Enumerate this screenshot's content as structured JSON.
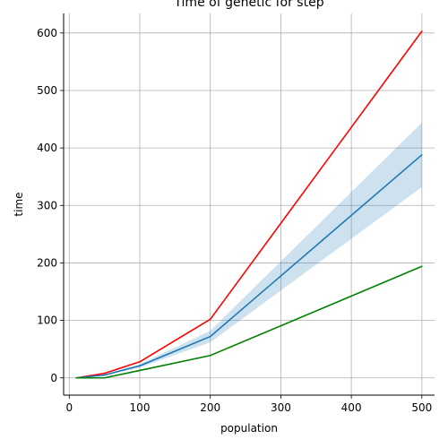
{
  "chart_data": {
    "type": "line",
    "title": "Time of genetic for step",
    "xlabel": "population",
    "ylabel": "time",
    "xlim": [
      -8,
      518
    ],
    "ylim": [
      -30,
      634
    ],
    "xticks": [
      0,
      100,
      200,
      300,
      400,
      500
    ],
    "yticks": [
      0,
      100,
      200,
      300,
      400,
      500,
      600
    ],
    "grid": true,
    "x": [
      10,
      50,
      100,
      200,
      500
    ],
    "series": [
      {
        "color": "#ff0000",
        "values": [
          0,
          8,
          28,
          102,
          603
        ]
      },
      {
        "color": "#1f77b4",
        "values": [
          0,
          5,
          21,
          72,
          388
        ],
        "band_low": [
          0,
          4,
          18,
          62,
          332
        ],
        "band_high": [
          0,
          6,
          24,
          82,
          444
        ],
        "band_color": "#1f77b4"
      },
      {
        "color": "#008000",
        "values": [
          0,
          0,
          13,
          39,
          194
        ]
      }
    ]
  }
}
